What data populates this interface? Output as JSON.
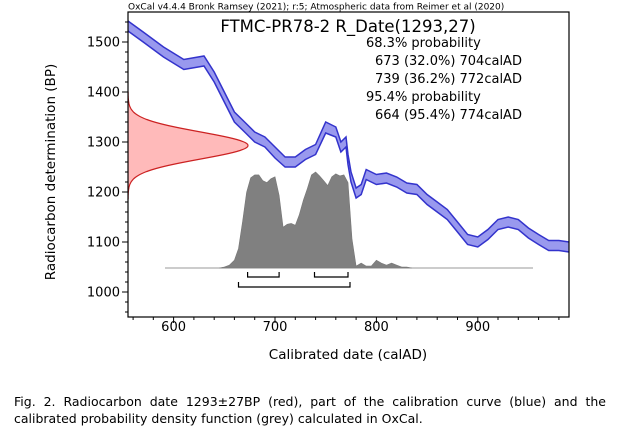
{
  "header": {
    "attribution": "OxCal v4.4.4 Bronk Ramsey (2021); r:5; Atmospheric data from Reimer et al (2020)"
  },
  "chart_data": {
    "type": "area",
    "title": "FTMC-PR78-2 R_Date(1293,27)",
    "xlabel": "Calibrated date (calAD)",
    "ylabel": "Radiocarbon determination (BP)",
    "xlim": [
      555,
      990
    ],
    "ylim": [
      950,
      1560
    ],
    "xticks": [
      600,
      700,
      800,
      900
    ],
    "yticks": [
      1000,
      1100,
      1200,
      1300,
      1400,
      1500
    ],
    "grid": false,
    "legend": "none",
    "annotations": [
      "68.3% probability",
      "673 (32.0%) 704calAD",
      "739 (36.2%) 772calAD",
      "95.4% probability",
      "664 (95.4%) 774calAD"
    ],
    "ranges_68": [
      [
        673,
        704
      ],
      [
        739,
        772
      ]
    ],
    "ranges_95": [
      [
        664,
        774
      ]
    ],
    "series": [
      {
        "type": "band",
        "color": "#3333cc",
        "fill": "#9999ee",
        "x": [
          555,
          570,
          590,
          610,
          630,
          640,
          650,
          660,
          670,
          680,
          690,
          700,
          710,
          720,
          730,
          740,
          750,
          760,
          765,
          770,
          772,
          775,
          780,
          785,
          790,
          800,
          810,
          820,
          830,
          840,
          850,
          860,
          870,
          880,
          890,
          900,
          910,
          920,
          930,
          940,
          950,
          960,
          970,
          980,
          990
        ],
        "upper": [
          1542,
          1520,
          1490,
          1465,
          1472,
          1440,
          1400,
          1360,
          1340,
          1320,
          1310,
          1290,
          1270,
          1270,
          1285,
          1295,
          1340,
          1330,
          1300,
          1310,
          1275,
          1240,
          1208,
          1215,
          1245,
          1235,
          1238,
          1230,
          1218,
          1215,
          1195,
          1180,
          1165,
          1140,
          1115,
          1110,
          1125,
          1145,
          1150,
          1145,
          1128,
          1115,
          1103,
          1103,
          1100
        ],
        "lower": [
          1522,
          1500,
          1470,
          1445,
          1452,
          1420,
          1380,
          1340,
          1320,
          1300,
          1290,
          1268,
          1250,
          1250,
          1265,
          1275,
          1318,
          1310,
          1280,
          1290,
          1255,
          1220,
          1188,
          1195,
          1225,
          1215,
          1218,
          1210,
          1198,
          1195,
          1175,
          1160,
          1145,
          1120,
          1095,
          1090,
          1105,
          1125,
          1130,
          1125,
          1108,
          1095,
          1083,
          1083,
          1080
        ]
      },
      {
        "type": "normal",
        "color": "#cc2222",
        "fill": "#ffb3b3",
        "mean": 1293,
        "sd": 27
      },
      {
        "type": "density",
        "fill": "#808080",
        "x": [
          645,
          650,
          655,
          660,
          664,
          668,
          672,
          676,
          680,
          684,
          688,
          692,
          696,
          700,
          704,
          708,
          712,
          716,
          720,
          724,
          728,
          732,
          736,
          740,
          744,
          748,
          752,
          756,
          760,
          764,
          768,
          772,
          776,
          780,
          785,
          790,
          795,
          800,
          805,
          810,
          815,
          820,
          825,
          830,
          835
        ],
        "y": [
          0,
          0.01,
          0.03,
          0.08,
          0.2,
          0.48,
          0.78,
          0.93,
          0.96,
          0.96,
          0.9,
          0.88,
          0.92,
          0.94,
          0.75,
          0.42,
          0.45,
          0.46,
          0.44,
          0.55,
          0.7,
          0.82,
          0.96,
          0.99,
          0.95,
          0.9,
          0.85,
          0.94,
          0.97,
          0.95,
          0.96,
          0.88,
          0.3,
          0.02,
          0.05,
          0.02,
          0.02,
          0.08,
          0.05,
          0.03,
          0.05,
          0.03,
          0.01,
          0.01,
          0
        ]
      }
    ]
  },
  "caption": {
    "text": "Fig. 2. Radiocarbon date 1293±27BP (red), part of the calibration curve (blue) and the calibrated probability density function (grey) calculated in OxCal."
  }
}
